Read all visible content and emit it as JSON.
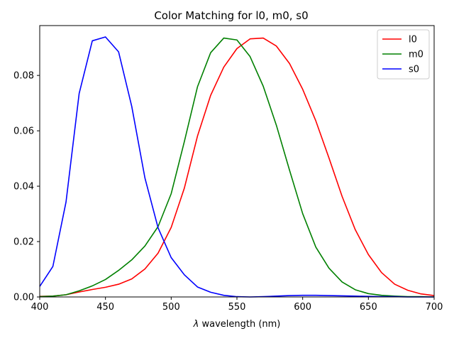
{
  "chart_data": {
    "type": "line",
    "title": "Color Matching for l0, m0, s0",
    "xlabel_symbol": "λ",
    "xlabel": "wavelength (nm)",
    "ylabel": "",
    "xlim": [
      400,
      700
    ],
    "ylim": [
      0,
      0.098
    ],
    "xticks": [
      400,
      450,
      500,
      550,
      600,
      650,
      700
    ],
    "yticks": [
      0.0,
      0.02,
      0.04,
      0.06,
      0.08
    ],
    "ytick_labels": [
      "0.00",
      "0.02",
      "0.04",
      "0.06",
      "0.08"
    ],
    "grid": false,
    "legend_position": "top-right",
    "x": [
      400,
      410,
      420,
      430,
      440,
      450,
      460,
      470,
      480,
      490,
      500,
      510,
      520,
      530,
      540,
      550,
      560,
      570,
      580,
      590,
      600,
      610,
      620,
      630,
      640,
      650,
      660,
      670,
      680,
      690,
      700
    ],
    "series": [
      {
        "name": "l0",
        "color": "#ff0000",
        "values": [
          0.0002,
          0.0003,
          0.0008,
          0.0018,
          0.0027,
          0.0035,
          0.0046,
          0.0065,
          0.0101,
          0.0158,
          0.0251,
          0.0393,
          0.0581,
          0.0728,
          0.083,
          0.0897,
          0.0932,
          0.0935,
          0.0906,
          0.0843,
          0.075,
          0.0636,
          0.0502,
          0.0363,
          0.0243,
          0.0153,
          0.0088,
          0.0046,
          0.0024,
          0.0011,
          0.0005
        ]
      },
      {
        "name": "m0",
        "color": "#008000",
        "values": [
          0.0001,
          0.0003,
          0.0008,
          0.0022,
          0.004,
          0.0063,
          0.0096,
          0.0134,
          0.0184,
          0.0254,
          0.0373,
          0.0561,
          0.0759,
          0.0882,
          0.0935,
          0.0928,
          0.0868,
          0.0761,
          0.062,
          0.0458,
          0.0301,
          0.018,
          0.0104,
          0.0054,
          0.0026,
          0.0012,
          0.0006,
          0.0003,
          0.0001,
          0.0001,
          0.0
        ]
      },
      {
        "name": "s0",
        "color": "#0000ff",
        "values": [
          0.0038,
          0.011,
          0.0343,
          0.0735,
          0.0925,
          0.0939,
          0.0885,
          0.0688,
          0.043,
          0.025,
          0.0142,
          0.008,
          0.0036,
          0.0017,
          0.0006,
          0.0001,
          0.0,
          0.0001,
          0.0003,
          0.0005,
          0.0006,
          0.0006,
          0.0005,
          0.0004,
          0.0003,
          0.0002,
          0.0001,
          0.0001,
          0.0,
          0.0,
          0.0
        ]
      }
    ]
  }
}
